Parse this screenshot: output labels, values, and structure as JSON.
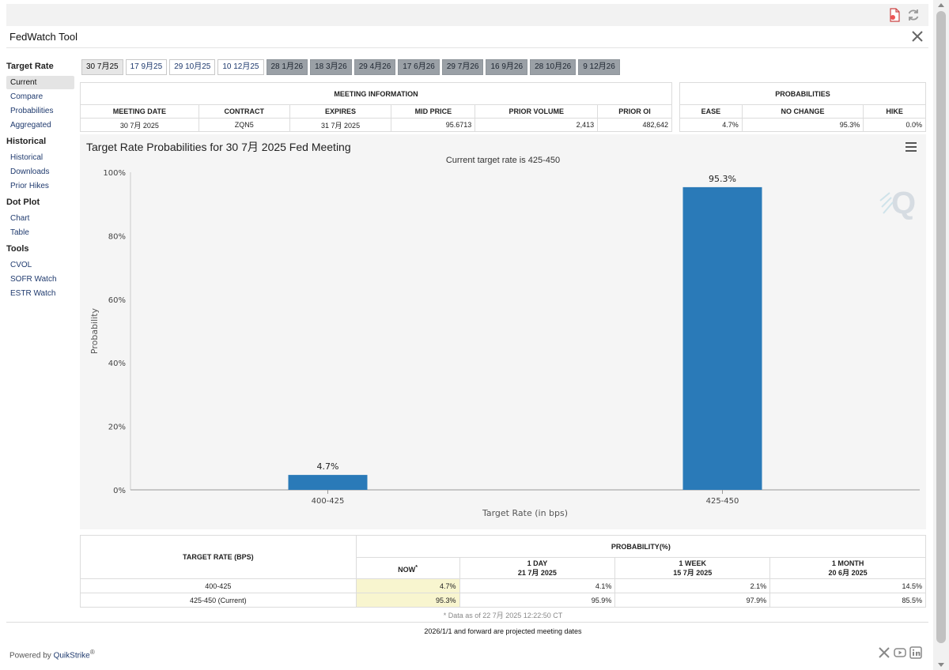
{
  "app": {
    "title": "FedWatch Tool"
  },
  "sidebar": {
    "groups": [
      {
        "heading": "Target Rate",
        "items": [
          "Current",
          "Compare",
          "Probabilities",
          "Aggregated"
        ]
      },
      {
        "heading": "Historical",
        "items": [
          "Historical",
          "Downloads",
          "Prior Hikes"
        ]
      },
      {
        "heading": "Dot Plot",
        "items": [
          "Chart",
          "Table"
        ]
      },
      {
        "heading": "Tools",
        "items": [
          "CVOL",
          "SOFR Watch",
          "ESTR Watch"
        ]
      }
    ],
    "active_item": "Current"
  },
  "date_tabs": [
    {
      "label": "30 7月25",
      "state": "selected"
    },
    {
      "label": "17 9月25",
      "state": "normal"
    },
    {
      "label": "29 10月25",
      "state": "normal"
    },
    {
      "label": "10 12月25",
      "state": "normal"
    },
    {
      "label": "28 1月26",
      "state": "projected"
    },
    {
      "label": "18 3月26",
      "state": "projected"
    },
    {
      "label": "29 4月26",
      "state": "projected"
    },
    {
      "label": "17 6月26",
      "state": "projected"
    },
    {
      "label": "29 7月26",
      "state": "projected"
    },
    {
      "label": "16 9月26",
      "state": "projected"
    },
    {
      "label": "28 10月26",
      "state": "projected"
    },
    {
      "label": "9 12月26",
      "state": "projected"
    }
  ],
  "meeting_info": {
    "heading": "MEETING INFORMATION",
    "columns": [
      "MEETING DATE",
      "CONTRACT",
      "EXPIRES",
      "MID PRICE",
      "PRIOR VOLUME",
      "PRIOR OI"
    ],
    "row": [
      "30 7月 2025",
      "ZQN5",
      "31 7月 2025",
      "95.6713",
      "2,413",
      "482,642"
    ]
  },
  "probabilities": {
    "heading": "PROBABILITIES",
    "columns": [
      "EASE",
      "NO CHANGE",
      "HIKE"
    ],
    "row": [
      "4.7%",
      "95.3%",
      "0.0%"
    ]
  },
  "chart": {
    "title": "Target Rate Probabilities for 30 7月 2025 Fed Meeting",
    "subtitle": "Current target rate is 425-450"
  },
  "chart_data": {
    "type": "bar",
    "title": "Target Rate Probabilities for 30 7月 2025 Fed Meeting",
    "subtitle": "Current target rate is 425-450",
    "categories": [
      "400-425",
      "425-450"
    ],
    "values": [
      4.7,
      95.3
    ],
    "data_labels": [
      "4.7%",
      "95.3%"
    ],
    "xlabel": "Target Rate (in bps)",
    "ylabel": "Probability",
    "ylim": [
      0,
      100
    ],
    "y_ticks": [
      "0%",
      "20%",
      "40%",
      "60%",
      "80%",
      "100%"
    ],
    "grid": false,
    "bar_color": "#2a7ab8"
  },
  "prob_table": {
    "col_rate": "TARGET RATE (BPS)",
    "group_heading": "PROBABILITY(%)",
    "periods": [
      {
        "label": "NOW",
        "sup": "*",
        "date": ""
      },
      {
        "label": "1 DAY",
        "date": "21 7月 2025"
      },
      {
        "label": "1 WEEK",
        "date": "15 7月 2025"
      },
      {
        "label": "1 MONTH",
        "date": "20 6月 2025"
      }
    ],
    "rows": [
      {
        "rate": "400-425",
        "values": [
          "4.7%",
          "4.1%",
          "2.1%",
          "14.5%"
        ]
      },
      {
        "rate": "425-450 (Current)",
        "values": [
          "95.3%",
          "95.9%",
          "97.9%",
          "85.5%"
        ]
      }
    ],
    "footnote": "* Data as of 22 7月 2025 12:22:50 CT"
  },
  "projected_note": "2026/1/1 and forward are projected meeting dates",
  "footer": {
    "powered_by": "Powered by ",
    "brand": "QuikStrike",
    "reg": "®"
  },
  "colors": {
    "highlight": "#f8f5cf",
    "projected_tab": "#9aa0a6",
    "link": "#1f3a6e"
  }
}
